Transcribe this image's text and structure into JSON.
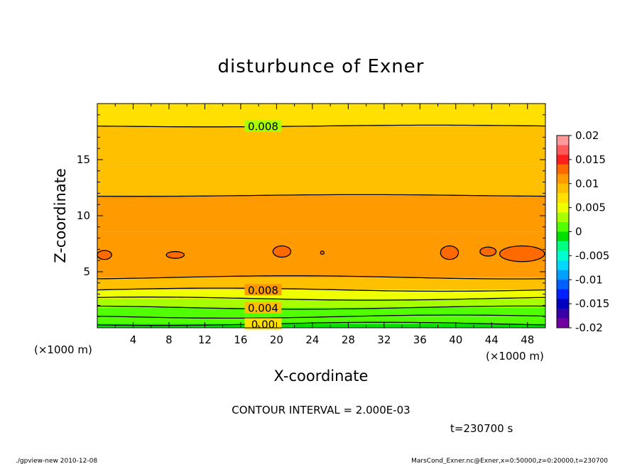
{
  "chart_data": {
    "type": "heatmap",
    "title": "disturbunce of Exner",
    "xlabel": "X-coordinate",
    "ylabel": "Z-coordinate",
    "x_unit_left": "(×1000 m)",
    "x_unit_right": "(×1000 m)",
    "xlim": [
      0,
      50
    ],
    "ylim": [
      0,
      20
    ],
    "x_ticks": [
      4,
      8,
      12,
      16,
      20,
      24,
      28,
      32,
      36,
      40,
      44,
      48
    ],
    "y_ticks": [
      5,
      10,
      15
    ],
    "contour_lines": [
      {
        "label": "0.008",
        "z": 18.0
      },
      {
        "label": "",
        "z": 11.8
      },
      {
        "label": "",
        "z": 4.5
      },
      {
        "label": "0.008",
        "z": 3.4
      },
      {
        "label": "",
        "z": 2.6
      },
      {
        "label": "0.004",
        "z": 1.8
      },
      {
        "label": "",
        "z": 1.0
      },
      {
        "label": "0.00",
        "z": 0.35
      }
    ],
    "colorbar": {
      "labels": [
        "0.02",
        "0.015",
        "0.01",
        "0.005",
        "0",
        "-0.005",
        "-0.01",
        "-0.015",
        "-0.02"
      ],
      "range": [
        -0.02,
        0.02
      ],
      "colors": [
        "#ff9a9a",
        "#ff5a5a",
        "#ff1e1e",
        "#ff6a00",
        "#ff9a00",
        "#ffc000",
        "#ffe000",
        "#f0ff00",
        "#a8ff00",
        "#50ff00",
        "#00e000",
        "#00ff80",
        "#00ffd0",
        "#00d8ff",
        "#00a0ff",
        "#0060ff",
        "#0020ff",
        "#0000c0",
        "#3a00a8",
        "#7000a0"
      ]
    },
    "bands": [
      {
        "z0": 0,
        "z1": 0.35,
        "value": -0.001
      },
      {
        "z0": 0.35,
        "z1": 1.0,
        "value": 0.0005
      },
      {
        "z0": 1.0,
        "z1": 1.8,
        "value": 0.002
      },
      {
        "z0": 1.8,
        "z1": 2.6,
        "value": 0.004
      },
      {
        "z0": 2.6,
        "z1": 3.4,
        "value": 0.006
      },
      {
        "z0": 3.4,
        "z1": 4.5,
        "value": 0.0085
      },
      {
        "z0": 4.5,
        "z1": 8.6,
        "value": 0.0115
      },
      {
        "z0": 8.6,
        "z1": 11.8,
        "value": 0.0105
      },
      {
        "z0": 11.8,
        "z1": 14.5,
        "value": 0.0095
      },
      {
        "z0": 14.5,
        "z1": 18.0,
        "value": 0.0085
      },
      {
        "z0": 18.0,
        "z1": 20.0,
        "value": 0.0075
      }
    ],
    "closed_contours": [
      {
        "x": 0.8,
        "z": 6.5,
        "rx": 0.8,
        "rz": 0.4
      },
      {
        "x": 8.7,
        "z": 6.5,
        "rx": 1.0,
        "rz": 0.3
      },
      {
        "x": 20.6,
        "z": 6.8,
        "rx": 1.0,
        "rz": 0.5
      },
      {
        "x": 25.1,
        "z": 6.7,
        "rx": 0.2,
        "rz": 0.15
      },
      {
        "x": 39.3,
        "z": 6.7,
        "rx": 1.0,
        "rz": 0.6
      },
      {
        "x": 43.6,
        "z": 6.8,
        "rx": 0.9,
        "rz": 0.4
      },
      {
        "x": 47.4,
        "z": 6.6,
        "rx": 2.5,
        "rz": 0.7
      }
    ]
  },
  "contour_interval": "CONTOUR INTERVAL = 2.000E-03",
  "time_label": "t=230700 s",
  "footer_left": "./gpview-new 2010-12-08",
  "footer_right": "MarsCond_Exner.nc@Exner,x=0:50000,z=0:20000,t=230700"
}
